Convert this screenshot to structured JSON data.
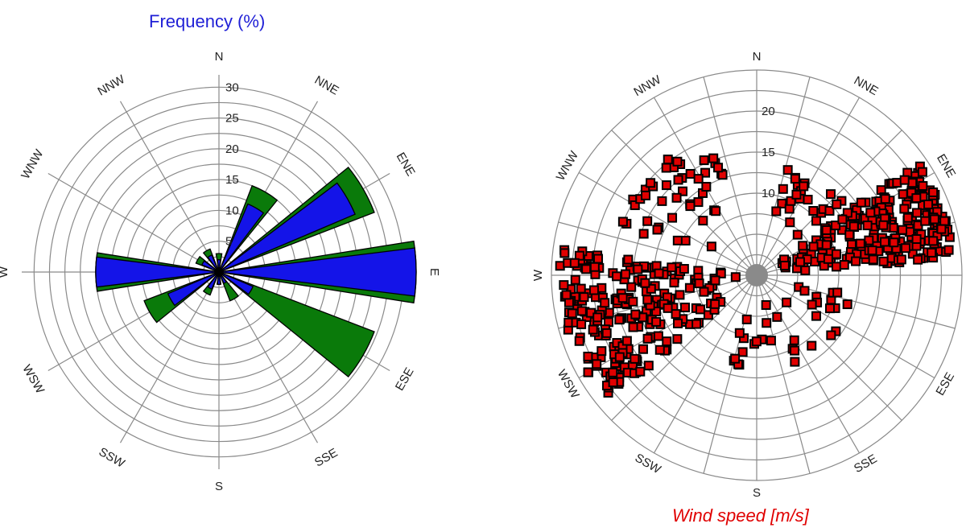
{
  "chart_data": [
    {
      "type": "polar-bar",
      "title": "Frequency (%)",
      "directions": [
        "N",
        "NNE",
        "ENE",
        "E",
        "ESE",
        "SSE",
        "S",
        "SSW",
        "WSW",
        "W",
        "WNW",
        "NNW"
      ],
      "rlim": [
        0,
        32
      ],
      "radial_ticks": [
        5,
        10,
        15,
        20,
        25,
        30
      ],
      "radial_tick_labels": [
        "5",
        "10",
        "15",
        "20",
        "25",
        "30"
      ],
      "series": [
        {
          "color": "#0a7a0a",
          "values": [
            3,
            15,
            27,
            32,
            27,
            5,
            2,
            4,
            13,
            20,
            4,
            4
          ]
        },
        {
          "color": "#1414e8",
          "values": [
            2,
            12,
            24,
            32,
            6,
            2,
            2,
            3,
            9,
            20,
            3,
            3
          ]
        }
      ]
    },
    {
      "type": "scatter",
      "title": "Wind speed [m/s]",
      "directions": [
        "N",
        "NNE",
        "ENE",
        "E",
        "ESE",
        "SSE",
        "S",
        "SSW",
        "WSW",
        "W",
        "WNW",
        "NNW"
      ],
      "rlim": [
        0,
        25
      ],
      "radial_ticks": [
        5,
        10,
        15,
        20
      ],
      "radial_tick_labels": [
        "10",
        "15",
        "20"
      ],
      "marker_color": "#e00000",
      "clusters": [
        {
          "direction_deg": [
            55,
            85
          ],
          "speed": [
            2,
            24
          ],
          "count": 260
        },
        {
          "direction_deg": [
            230,
            278
          ],
          "speed": [
            2,
            24
          ],
          "count": 230
        },
        {
          "direction_deg": [
            290,
            345
          ],
          "speed": [
            6,
            18
          ],
          "count": 45
        },
        {
          "direction_deg": [
            10,
            50
          ],
          "speed": [
            5,
            14
          ],
          "count": 25
        },
        {
          "direction_deg": [
            100,
            200
          ],
          "speed": [
            3,
            12
          ],
          "count": 35
        }
      ]
    }
  ]
}
